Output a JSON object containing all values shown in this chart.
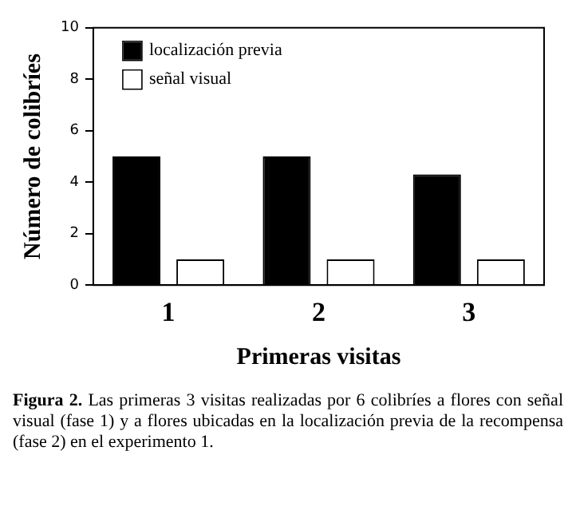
{
  "chart_data": {
    "type": "bar",
    "categories": [
      "1",
      "2",
      "3"
    ],
    "series": [
      {
        "name": "localización previa",
        "color": "#000000",
        "values": [
          5,
          5,
          4.3
        ]
      },
      {
        "name": "señal visual",
        "color": "#ffffff",
        "values": [
          1,
          1,
          1
        ]
      }
    ],
    "xlabel": "Primeras visitas",
    "ylabel": "Número de colibríes",
    "ylim": [
      0,
      10
    ],
    "yticks": [
      0,
      2,
      4,
      6,
      8,
      10
    ],
    "grid": false,
    "legend": "top left",
    "annotations": [
      "Figura 2.",
      "Las primeras 3 visitas realizadas por 6 colibríes a flores con señal visual (fase 1) y a flores ubicadas en la localización previa de la recompensa (fase 2) en el experimento 1."
    ]
  }
}
